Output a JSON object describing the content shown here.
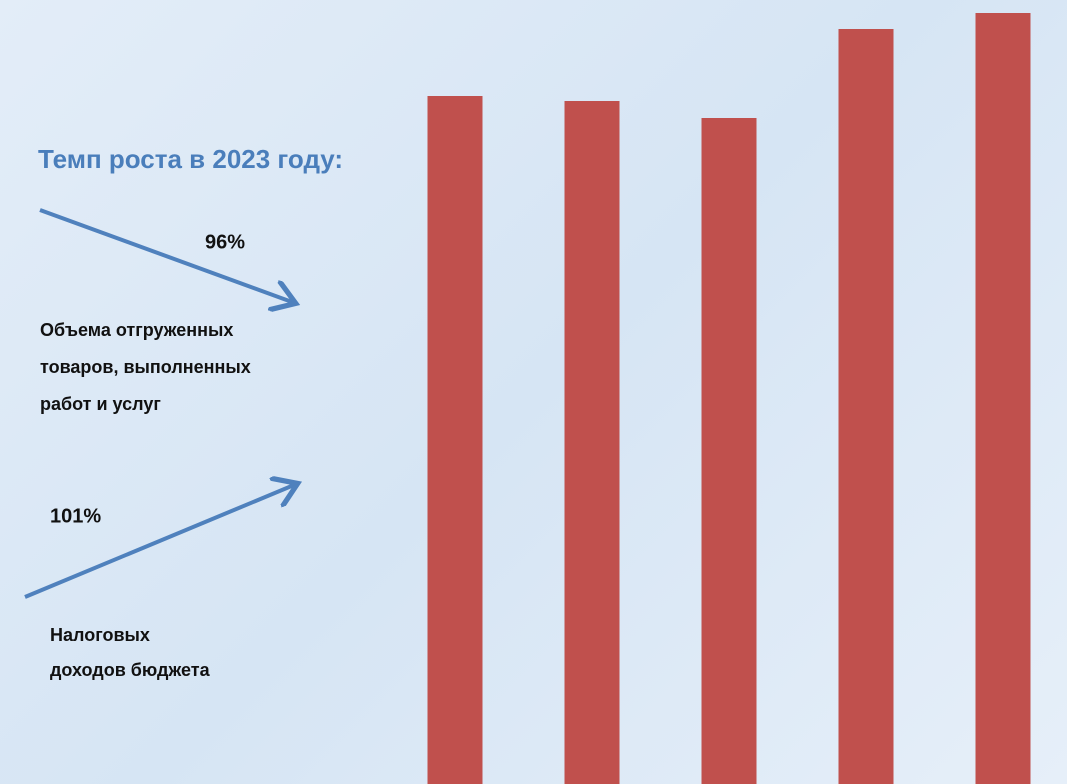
{
  "panel": {
    "heading": "Темп роста в 2023 году:",
    "items": [
      {
        "value_label": "96%",
        "lines": [
          "Объема отгруженных",
          "товаров, выполненных",
          "работ и услуг"
        ]
      },
      {
        "value_label": "101%",
        "lines": [
          "Налоговых",
          "доходов бюджета"
        ]
      }
    ]
  },
  "chart_data": {
    "type": "bar",
    "categories": [
      null,
      null,
      null,
      null,
      null
    ],
    "values": [
      688,
      683,
      666,
      755,
      771
    ],
    "color": "#c0504d",
    "ylim": [
      0,
      784
    ]
  }
}
